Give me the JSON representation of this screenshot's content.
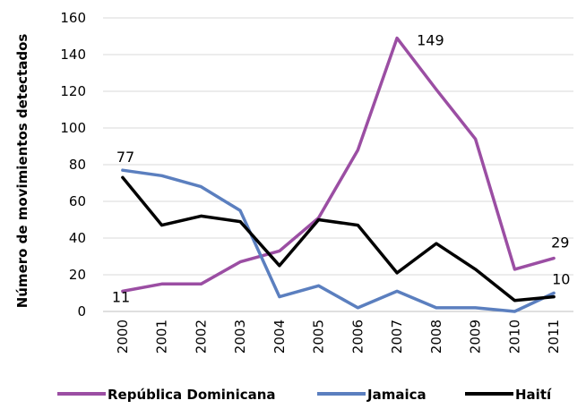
{
  "chart_data": {
    "type": "line",
    "ylabel": "Número de movimientos detectados",
    "xlabel": "",
    "x": [
      "2000",
      "2001",
      "2002",
      "2003",
      "2004",
      "2005",
      "2006",
      "2007",
      "2008",
      "2009",
      "2010",
      "2011"
    ],
    "yticks": [
      "0",
      "20",
      "40",
      "60",
      "80",
      "100",
      "120",
      "140",
      "160"
    ],
    "ylim": [
      0,
      160
    ],
    "grid": true,
    "legend": "bottom",
    "series": [
      {
        "name": "República Dominicana",
        "color": "#9b4ea3",
        "values": [
          11,
          15,
          15,
          27,
          33,
          51,
          88,
          149,
          121,
          94,
          23,
          29
        ]
      },
      {
        "name": "Jamaica",
        "color": "#5b7fbf",
        "values": [
          77,
          74,
          68,
          55,
          8,
          14,
          2,
          11,
          2,
          2,
          0,
          10
        ]
      },
      {
        "name": "Haití",
        "color": "#000000",
        "values": [
          73,
          47,
          52,
          49,
          25,
          50,
          47,
          21,
          37,
          23,
          6,
          8
        ]
      }
    ],
    "annotations": [
      {
        "text": "77",
        "series": 1,
        "index": 0
      },
      {
        "text": "11",
        "series": 0,
        "index": 0
      },
      {
        "text": "149",
        "series": 0,
        "index": 7
      },
      {
        "text": "29",
        "series": 0,
        "index": 11
      },
      {
        "text": "10",
        "series": 1,
        "index": 11
      }
    ]
  }
}
